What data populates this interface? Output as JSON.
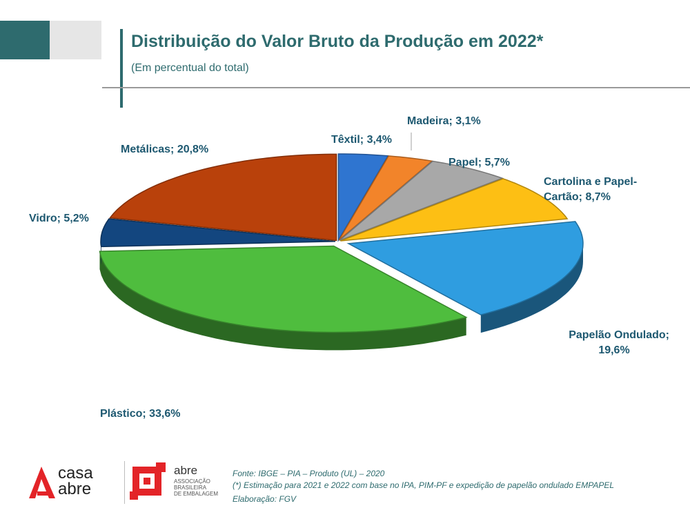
{
  "header": {
    "title": "Distribuição do Valor Bruto da Produção em 2022*",
    "subtitle": "(Em percentual do total)"
  },
  "chart_data": {
    "type": "pie",
    "style": "3d-exploded",
    "title": "Distribuição do Valor Bruto da Produção em 2022*",
    "subtitle": "(Em percentual do total)",
    "slices": [
      {
        "name": "Têxtil",
        "value": 3.4,
        "label": "Têxtil; 3,4%",
        "color": "#2f75d0"
      },
      {
        "name": "Madeira",
        "value": 3.1,
        "label": "Madeira; 3,1%",
        "color": "#f2842a"
      },
      {
        "name": "Papel",
        "value": 5.7,
        "label": "Papel; 5,7%",
        "color": "#a8a8a8"
      },
      {
        "name": "Cartolina e Papel-Cartão",
        "value": 8.7,
        "label_lines": [
          "Cartolina e Papel-",
          "Cartão; 8,7%"
        ],
        "color": "#fdbf14"
      },
      {
        "name": "Papelão Ondulado",
        "value": 19.6,
        "label_lines": [
          "Papelão Ondulado;",
          "19,6%"
        ],
        "color": "#2f9de0"
      },
      {
        "name": "Plástico",
        "value": 33.6,
        "label": "Plástico; 33,6%",
        "color": "#4fbd3e"
      },
      {
        "name": "Vidro",
        "value": 5.2,
        "label": "Vidro; 5,2%",
        "color": "#13467f"
      },
      {
        "name": "Metálicas",
        "value": 20.8,
        "label": "Metálicas; 20,8%",
        "color": "#b9410b"
      }
    ]
  },
  "footer": {
    "logo_casa": [
      "casa",
      "abre"
    ],
    "logo_abre_word": "abre",
    "logo_abre_sub": [
      "ASSOCIAÇÃO",
      "BRASILEIRA",
      "DE EMBALAGEM"
    ],
    "source_lines": [
      "Fonte: IBGE – PIA – Produto (UL) – 2020",
      "(*) Estimação para 2021 e 2022 com base no IPA, PIM-PF e expedição de papelão ondulado EMPAPEL",
      "Elaboração: FGV"
    ]
  },
  "colors": {
    "accent": "#2e6b6e",
    "label": "#1d5870",
    "logo_red": "#e32428"
  }
}
